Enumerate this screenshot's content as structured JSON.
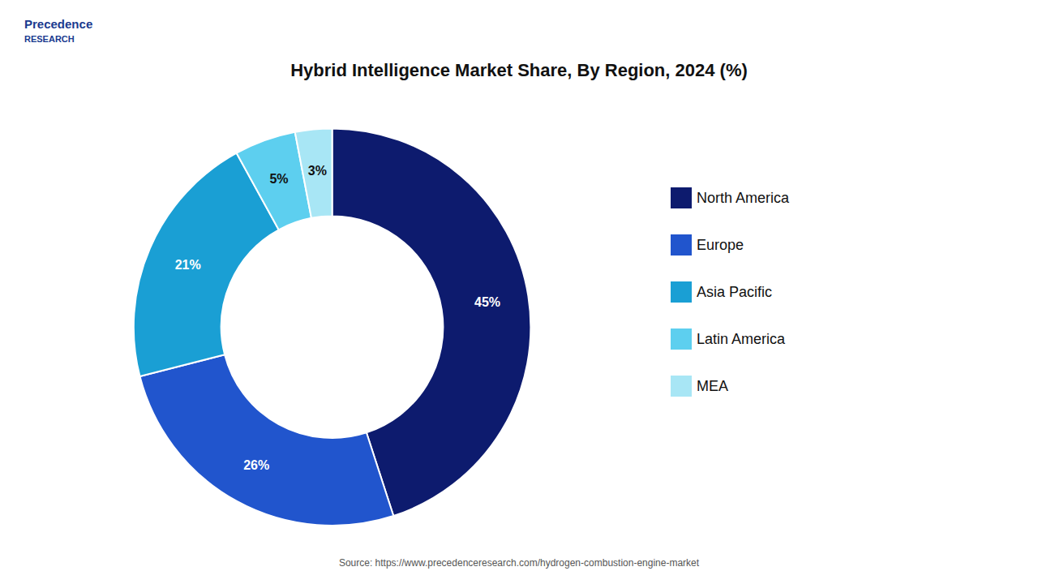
{
  "chart_data": {
    "type": "pie",
    "title": "Hybrid Intelligence Market Share, By Region, 2024 (%)",
    "categories": [
      "North America",
      "Europe",
      "Asia Pacific",
      "Latin America",
      "MEA"
    ],
    "values": [
      45,
      26,
      21,
      5,
      3
    ],
    "value_labels": [
      "45%",
      "26%",
      "21%",
      "5%",
      "3%"
    ],
    "colors": [
      "#0d1b6e",
      "#2155cd",
      "#1a9fd4",
      "#5dcfef",
      "#a8e6f5"
    ],
    "data_labels": true,
    "legend": "right",
    "annotations": [
      "Precedence",
      "RESEARCH",
      "Source: https://www.precedenceresearch.com/hydrogen-combustion-engine-market"
    ]
  }
}
